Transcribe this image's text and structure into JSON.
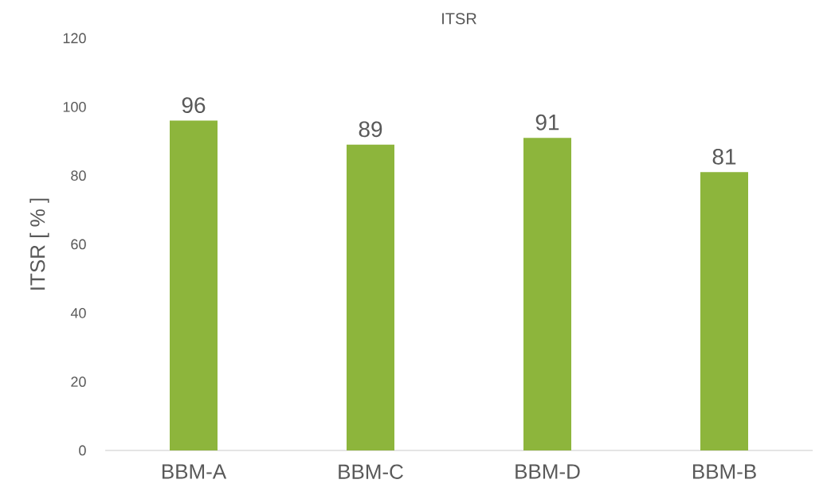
{
  "chart_data": {
    "type": "bar",
    "title": "ITSR",
    "ylabel": "ITSR [ % ]",
    "categories": [
      "BBM-A",
      "BBM-C",
      "BBM-D",
      "BBM-B"
    ],
    "values": [
      96,
      89,
      91,
      81
    ],
    "color": "#8db53c",
    "ylim": [
      0,
      120
    ],
    "yticks": [
      0,
      20,
      40,
      60,
      80,
      100,
      120
    ],
    "grid": false,
    "data_labels": true
  }
}
